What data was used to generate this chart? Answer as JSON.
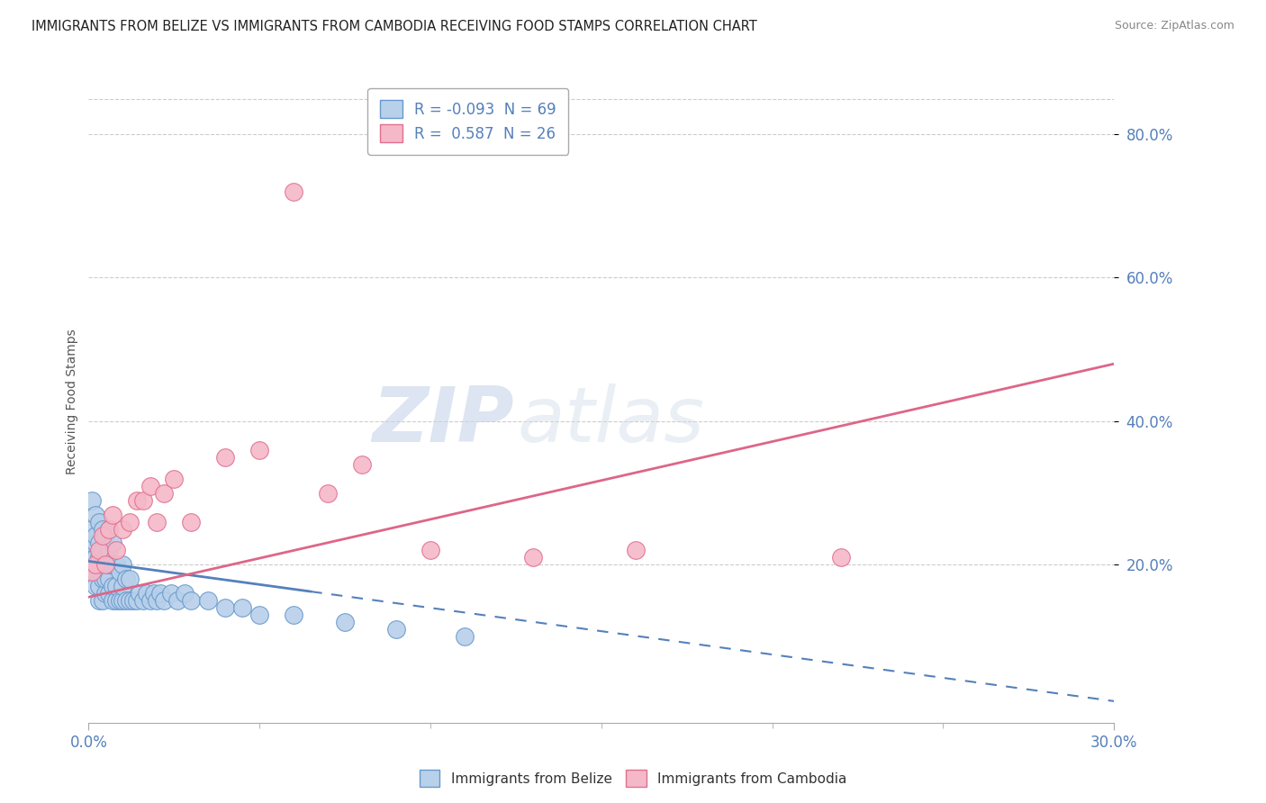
{
  "title": "IMMIGRANTS FROM BELIZE VS IMMIGRANTS FROM CAMBODIA RECEIVING FOOD STAMPS CORRELATION CHART",
  "source": "Source: ZipAtlas.com",
  "ylabel": "Receiving Food Stamps",
  "ytick_vals": [
    0.2,
    0.4,
    0.6,
    0.8
  ],
  "xlim": [
    0.0,
    0.3
  ],
  "ylim": [
    -0.02,
    0.875
  ],
  "legend_r1": "R = -0.093  N = 69",
  "legend_r2": "R =  0.587  N = 26",
  "belize_color": "#b8d0ea",
  "cambodia_color": "#f5b8c8",
  "belize_edge_color": "#6699cc",
  "cambodia_edge_color": "#e07090",
  "belize_trend_color": "#5580bb",
  "cambodia_trend_color": "#dd6688",
  "belize_scatter_x": [
    0.001,
    0.001,
    0.001,
    0.001,
    0.001,
    0.002,
    0.002,
    0.002,
    0.002,
    0.002,
    0.002,
    0.003,
    0.003,
    0.003,
    0.003,
    0.003,
    0.003,
    0.004,
    0.004,
    0.004,
    0.004,
    0.004,
    0.005,
    0.005,
    0.005,
    0.005,
    0.006,
    0.006,
    0.006,
    0.006,
    0.006,
    0.007,
    0.007,
    0.007,
    0.007,
    0.008,
    0.008,
    0.008,
    0.009,
    0.009,
    0.01,
    0.01,
    0.01,
    0.011,
    0.011,
    0.012,
    0.012,
    0.013,
    0.014,
    0.015,
    0.016,
    0.017,
    0.018,
    0.019,
    0.02,
    0.021,
    0.022,
    0.024,
    0.026,
    0.028,
    0.03,
    0.035,
    0.04,
    0.045,
    0.05,
    0.06,
    0.075,
    0.09,
    0.11
  ],
  "belize_scatter_y": [
    0.19,
    0.21,
    0.23,
    0.25,
    0.29,
    0.17,
    0.19,
    0.21,
    0.23,
    0.24,
    0.27,
    0.15,
    0.17,
    0.19,
    0.21,
    0.23,
    0.26,
    0.15,
    0.18,
    0.2,
    0.22,
    0.25,
    0.16,
    0.18,
    0.21,
    0.24,
    0.16,
    0.18,
    0.2,
    0.22,
    0.25,
    0.15,
    0.17,
    0.2,
    0.23,
    0.15,
    0.17,
    0.2,
    0.15,
    0.19,
    0.15,
    0.17,
    0.2,
    0.15,
    0.18,
    0.15,
    0.18,
    0.15,
    0.15,
    0.16,
    0.15,
    0.16,
    0.15,
    0.16,
    0.15,
    0.16,
    0.15,
    0.16,
    0.15,
    0.16,
    0.15,
    0.15,
    0.14,
    0.14,
    0.13,
    0.13,
    0.12,
    0.11,
    0.1
  ],
  "cambodia_scatter_x": [
    0.001,
    0.002,
    0.003,
    0.004,
    0.005,
    0.006,
    0.007,
    0.008,
    0.01,
    0.012,
    0.014,
    0.016,
    0.018,
    0.02,
    0.022,
    0.025,
    0.03,
    0.04,
    0.05,
    0.06,
    0.07,
    0.08,
    0.1,
    0.13,
    0.16,
    0.22
  ],
  "cambodia_scatter_y": [
    0.19,
    0.2,
    0.22,
    0.24,
    0.2,
    0.25,
    0.27,
    0.22,
    0.25,
    0.26,
    0.29,
    0.29,
    0.31,
    0.26,
    0.3,
    0.32,
    0.26,
    0.35,
    0.36,
    0.72,
    0.3,
    0.34,
    0.22,
    0.21,
    0.22,
    0.21
  ],
  "belize_trend_x0": 0.0,
  "belize_trend_x_solid_end": 0.065,
  "belize_trend_x_dash_end": 0.3,
  "belize_trend_y0": 0.205,
  "belize_trend_slope": -0.65,
  "cambodia_trend_x0": 0.0,
  "cambodia_trend_x1": 0.3,
  "cambodia_trend_y0": 0.155,
  "cambodia_trend_y1": 0.48,
  "watermark_zip": "ZIP",
  "watermark_atlas": "atlas",
  "background_color": "#ffffff",
  "grid_color": "#cccccc"
}
